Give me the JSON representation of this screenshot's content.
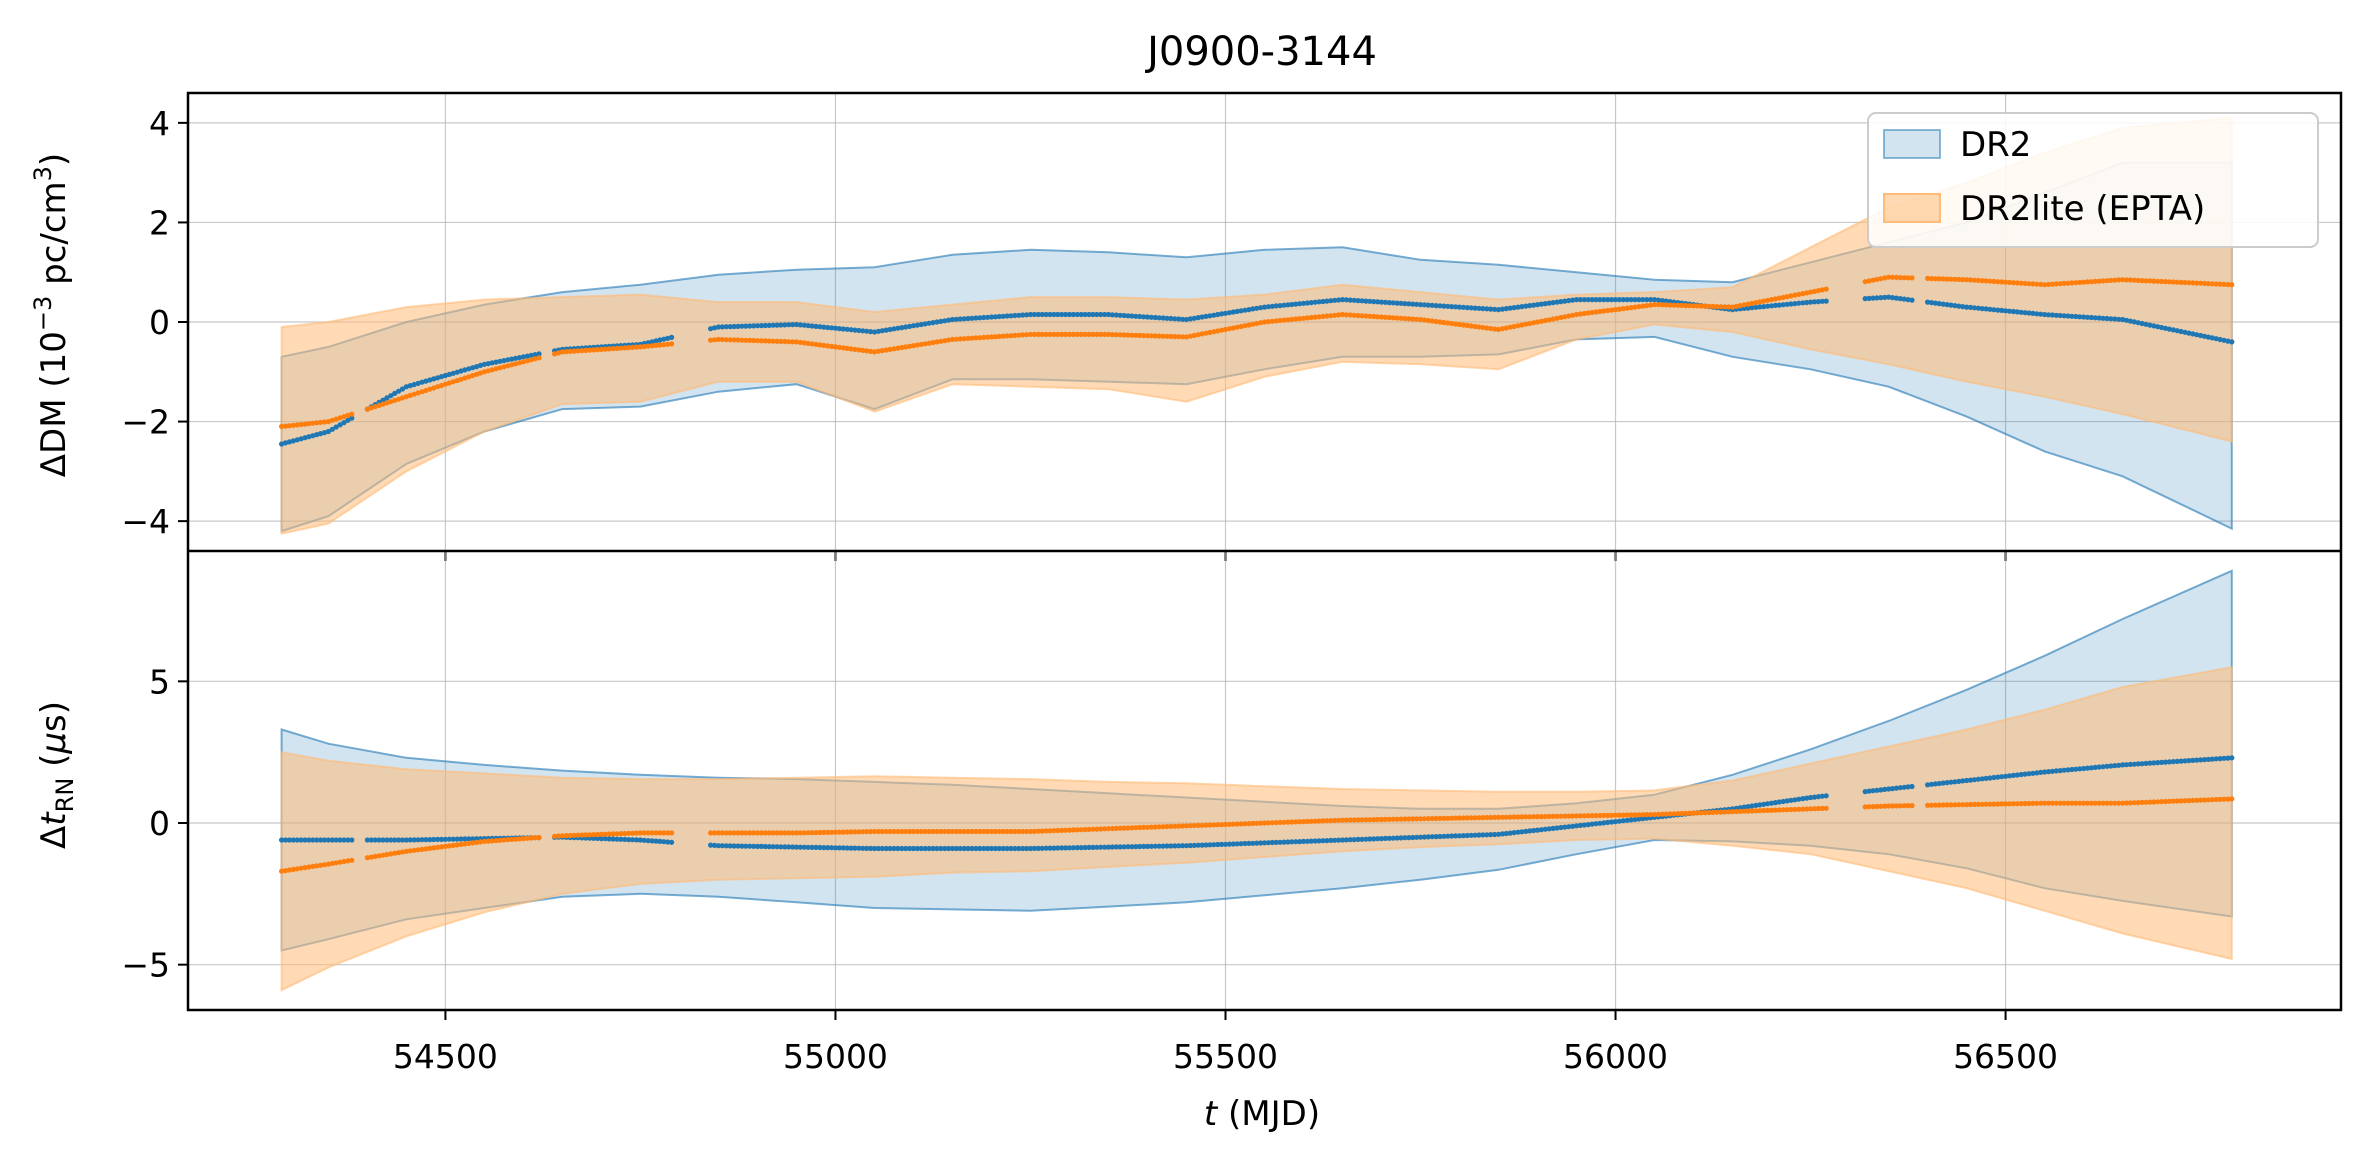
{
  "title": "J0900-3144",
  "colors": {
    "dr2": "#1f77b4",
    "dr2_band": "#1f77b4",
    "lite": "#ff7f0e",
    "lite_band": "#ffbb78"
  },
  "legend": {
    "placement": "top-right",
    "items": [
      {
        "key": "dr2",
        "label": "DR2"
      },
      {
        "key": "lite",
        "label": "DR2lite (EPTA)"
      }
    ]
  },
  "xaxis": {
    "label_italic": "t",
    "label_rest": " (MJD)",
    "ticks": [
      "54500",
      "55000",
      "55500",
      "56000",
      "56500"
    ]
  },
  "chart_data": [
    {
      "type": "area",
      "panel": "top",
      "ylabel": "ΔDM (10⁻³ pc/cm³)",
      "ylabel_parts": [
        "ΔDM (10",
        "−3",
        " pc/cm",
        "3",
        ")"
      ],
      "xlim": [
        54170,
        56930
      ],
      "ylim": [
        -4.6,
        4.6
      ],
      "yticks": [
        -4,
        -2,
        0,
        2,
        4
      ],
      "ytick_labels": [
        "−4",
        "−2",
        "0",
        "2",
        "4"
      ],
      "grid": true,
      "series": [
        {
          "name": "DR2",
          "x": [
            54290,
            54350,
            54450,
            54550,
            54650,
            54750,
            54850,
            54950,
            55050,
            55150,
            55250,
            55350,
            55450,
            55550,
            55650,
            55750,
            55850,
            55950,
            56050,
            56150,
            56250,
            56350,
            56450,
            56550,
            56650,
            56790
          ],
          "mean": [
            -2.45,
            -2.2,
            -1.3,
            -0.85,
            -0.55,
            -0.45,
            -0.1,
            -0.05,
            -0.2,
            0.05,
            0.15,
            0.15,
            0.05,
            0.3,
            0.45,
            0.35,
            0.25,
            0.45,
            0.45,
            0.25,
            0.4,
            0.5,
            0.3,
            0.15,
            0.05,
            -0.4
          ],
          "upper": [
            -0.7,
            -0.5,
            0.0,
            0.35,
            0.6,
            0.75,
            0.95,
            1.05,
            1.1,
            1.35,
            1.45,
            1.4,
            1.3,
            1.45,
            1.5,
            1.25,
            1.15,
            1.0,
            0.85,
            0.8,
            1.2,
            1.6,
            2.0,
            2.6,
            3.2,
            3.2
          ],
          "lower": [
            -4.2,
            -3.9,
            -2.85,
            -2.2,
            -1.75,
            -1.7,
            -1.4,
            -1.25,
            -1.75,
            -1.15,
            -1.15,
            -1.2,
            -1.25,
            -0.95,
            -0.7,
            -0.7,
            -0.65,
            -0.35,
            -0.3,
            -0.7,
            -0.95,
            -1.3,
            -1.9,
            -2.6,
            -3.1,
            -4.15
          ]
        },
        {
          "name": "DR2lite (EPTA)",
          "x": [
            54290,
            54350,
            54450,
            54550,
            54650,
            54750,
            54850,
            54950,
            55050,
            55150,
            55250,
            55350,
            55450,
            55550,
            55650,
            55750,
            55850,
            55950,
            56050,
            56150,
            56250,
            56350,
            56450,
            56550,
            56650,
            56790
          ],
          "mean": [
            -2.1,
            -2.0,
            -1.5,
            -1.0,
            -0.6,
            -0.5,
            -0.35,
            -0.4,
            -0.6,
            -0.35,
            -0.25,
            -0.25,
            -0.3,
            0.0,
            0.15,
            0.05,
            -0.15,
            0.15,
            0.35,
            0.3,
            0.6,
            0.9,
            0.85,
            0.75,
            0.85,
            0.75
          ],
          "upper": [
            -0.1,
            0.0,
            0.3,
            0.45,
            0.5,
            0.55,
            0.4,
            0.4,
            0.2,
            0.35,
            0.5,
            0.5,
            0.45,
            0.55,
            0.75,
            0.6,
            0.45,
            0.55,
            0.6,
            0.7,
            1.5,
            2.3,
            2.8,
            3.4,
            3.9,
            4.1
          ],
          "lower": [
            -4.25,
            -4.05,
            -3.0,
            -2.2,
            -1.65,
            -1.6,
            -1.2,
            -1.2,
            -1.8,
            -1.25,
            -1.3,
            -1.35,
            -1.6,
            -1.1,
            -0.8,
            -0.85,
            -0.95,
            -0.35,
            -0.05,
            -0.2,
            -0.55,
            -0.85,
            -1.2,
            -1.5,
            -1.85,
            -2.4
          ]
        }
      ]
    },
    {
      "type": "area",
      "panel": "bottom",
      "ylabel": "Δt_RN (μs)",
      "ylabel_parts": [
        "Δ",
        "t",
        "RN",
        " (",
        "μ",
        "s)"
      ],
      "xlim": [
        54170,
        56930
      ],
      "ylim": [
        -6.6,
        9.6
      ],
      "yticks": [
        -5,
        0,
        5
      ],
      "ytick_labels": [
        "−5",
        "0",
        "5"
      ],
      "grid": true,
      "series": [
        {
          "name": "DR2",
          "x": [
            54290,
            54350,
            54450,
            54550,
            54650,
            54750,
            54850,
            54950,
            55050,
            55150,
            55250,
            55350,
            55450,
            55550,
            55650,
            55750,
            55850,
            55950,
            56050,
            56150,
            56250,
            56350,
            56450,
            56550,
            56650,
            56790
          ],
          "mean": [
            -0.6,
            -0.6,
            -0.6,
            -0.55,
            -0.5,
            -0.6,
            -0.8,
            -0.85,
            -0.9,
            -0.9,
            -0.9,
            -0.85,
            -0.8,
            -0.7,
            -0.6,
            -0.5,
            -0.4,
            -0.1,
            0.2,
            0.5,
            0.9,
            1.2,
            1.5,
            1.8,
            2.05,
            2.3
          ],
          "upper": [
            3.3,
            2.8,
            2.3,
            2.05,
            1.85,
            1.7,
            1.6,
            1.55,
            1.45,
            1.35,
            1.2,
            1.05,
            0.9,
            0.75,
            0.6,
            0.5,
            0.5,
            0.7,
            1.0,
            1.7,
            2.6,
            3.6,
            4.7,
            5.9,
            7.2,
            8.9
          ],
          "lower": [
            -4.5,
            -4.1,
            -3.4,
            -3.0,
            -2.6,
            -2.5,
            -2.6,
            -2.8,
            -3.0,
            -3.05,
            -3.1,
            -2.95,
            -2.8,
            -2.55,
            -2.3,
            -2.0,
            -1.65,
            -1.1,
            -0.6,
            -0.65,
            -0.8,
            -1.1,
            -1.6,
            -2.3,
            -2.75,
            -3.3
          ]
        },
        {
          "name": "DR2lite (EPTA)",
          "x": [
            54290,
            54350,
            54450,
            54550,
            54650,
            54750,
            54850,
            54950,
            55050,
            55150,
            55250,
            55350,
            55450,
            55550,
            55650,
            55750,
            55850,
            55950,
            56050,
            56150,
            56250,
            56350,
            56450,
            56550,
            56650,
            56790
          ],
          "mean": [
            -1.7,
            -1.45,
            -1.0,
            -0.65,
            -0.45,
            -0.35,
            -0.35,
            -0.35,
            -0.3,
            -0.3,
            -0.3,
            -0.2,
            -0.1,
            0.0,
            0.1,
            0.15,
            0.2,
            0.25,
            0.3,
            0.4,
            0.5,
            0.6,
            0.65,
            0.7,
            0.7,
            0.85
          ],
          "upper": [
            2.5,
            2.2,
            1.9,
            1.75,
            1.6,
            1.55,
            1.55,
            1.6,
            1.65,
            1.6,
            1.55,
            1.45,
            1.4,
            1.3,
            1.2,
            1.15,
            1.1,
            1.1,
            1.15,
            1.5,
            2.1,
            2.7,
            3.3,
            4.0,
            4.8,
            5.5
          ],
          "lower": [
            -5.9,
            -5.1,
            -4.0,
            -3.15,
            -2.5,
            -2.15,
            -2.0,
            -1.95,
            -1.9,
            -1.75,
            -1.7,
            -1.55,
            -1.4,
            -1.2,
            -1.0,
            -0.85,
            -0.75,
            -0.6,
            -0.55,
            -0.8,
            -1.1,
            -1.7,
            -2.3,
            -3.1,
            -3.9,
            -4.8
          ]
        }
      ]
    }
  ]
}
